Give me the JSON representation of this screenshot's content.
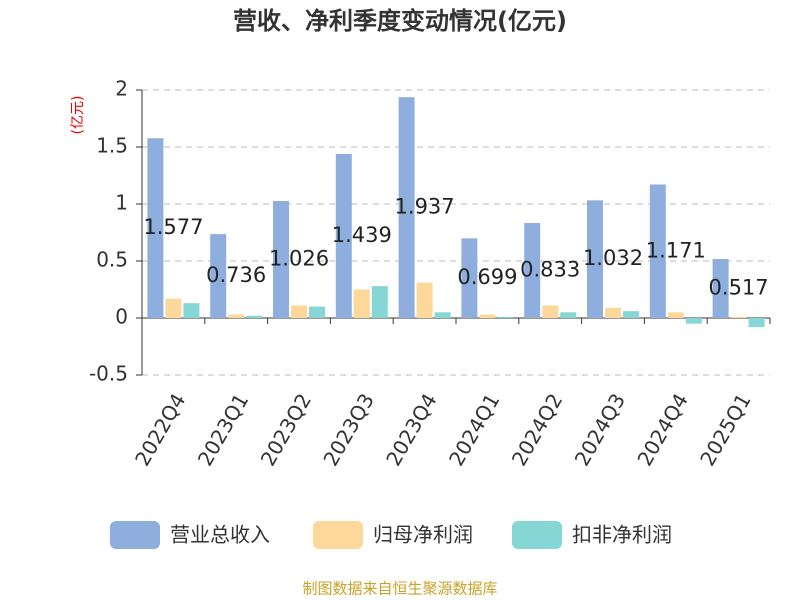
{
  "chart_data": {
    "type": "bar",
    "title": "营收、净利季度变动情况(亿元)",
    "y_label": "(亿元)",
    "categories": [
      "2022Q4",
      "2023Q1",
      "2023Q2",
      "2023Q3",
      "2023Q4",
      "2024Q1",
      "2024Q2",
      "2024Q3",
      "2024Q4",
      "2025Q1"
    ],
    "series": [
      {
        "name": "营业总收入",
        "color": "#8eaedd",
        "values": [
          1.577,
          0.736,
          1.026,
          1.439,
          1.937,
          0.699,
          0.833,
          1.032,
          1.171,
          0.517
        ],
        "data_labels": true
      },
      {
        "name": "归母净利润",
        "color": "#fdd89a",
        "values": [
          0.17,
          0.03,
          0.11,
          0.25,
          0.31,
          0.03,
          0.11,
          0.09,
          0.05,
          0.01
        ]
      },
      {
        "name": "扣非净利润",
        "color": "#86d6d6",
        "values": [
          0.13,
          0.02,
          0.1,
          0.28,
          0.05,
          0.01,
          0.05,
          0.06,
          -0.05,
          -0.08
        ]
      }
    ],
    "ylim": [
      -0.5,
      2
    ],
    "yticks": [
      -0.5,
      0,
      0.5,
      1,
      1.5,
      2
    ],
    "grid": true,
    "legend": "bottom",
    "footer": "制图数据来自恒生聚源数据库"
  }
}
